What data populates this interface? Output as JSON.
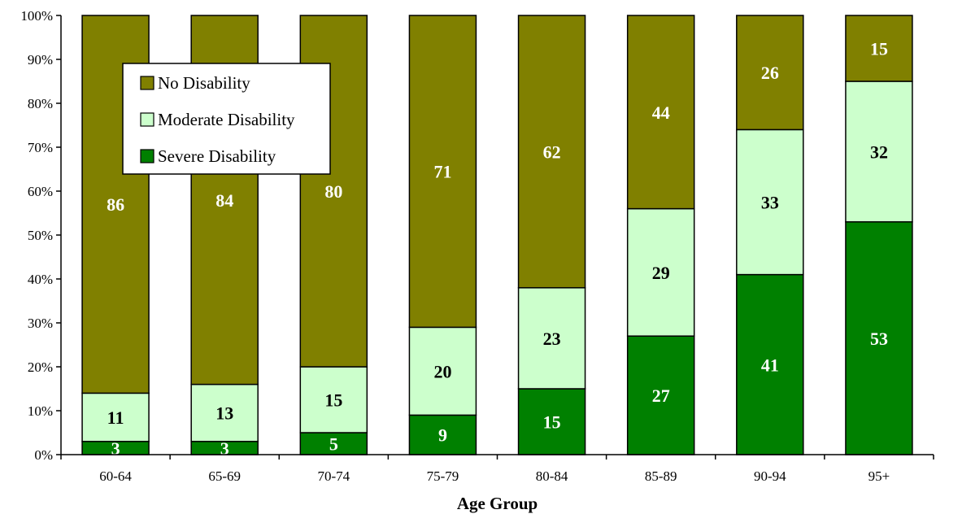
{
  "chart_data": {
    "type": "bar",
    "stacked": true,
    "percent": true,
    "categories": [
      "60-64",
      "65-69",
      "70-74",
      "75-79",
      "80-84",
      "85-89",
      "90-94",
      "95+"
    ],
    "series": [
      {
        "name": "Severe Disability",
        "values": [
          3,
          3,
          5,
          9,
          15,
          27,
          41,
          53
        ],
        "color": "#008000",
        "label_color": "#ffffff"
      },
      {
        "name": "Moderate Disability",
        "values": [
          11,
          13,
          15,
          20,
          23,
          29,
          33,
          32
        ],
        "color": "#ccffcc",
        "label_color": "#000000"
      },
      {
        "name": "No Disability",
        "values": [
          86,
          84,
          80,
          71,
          62,
          44,
          26,
          15
        ],
        "color": "#808000",
        "label_color": "#ffffff"
      }
    ],
    "legend_order": [
      "No Disability",
      "Moderate Disability",
      "Severe Disability"
    ],
    "legend_position": "top-left",
    "ylim": [
      0,
      100
    ],
    "yticks": [
      "0%",
      "10%",
      "20%",
      "30%",
      "40%",
      "50%",
      "60%",
      "70%",
      "80%",
      "90%",
      "100%"
    ],
    "xlabel": "Age Group",
    "ylabel": "",
    "grid": false
  }
}
